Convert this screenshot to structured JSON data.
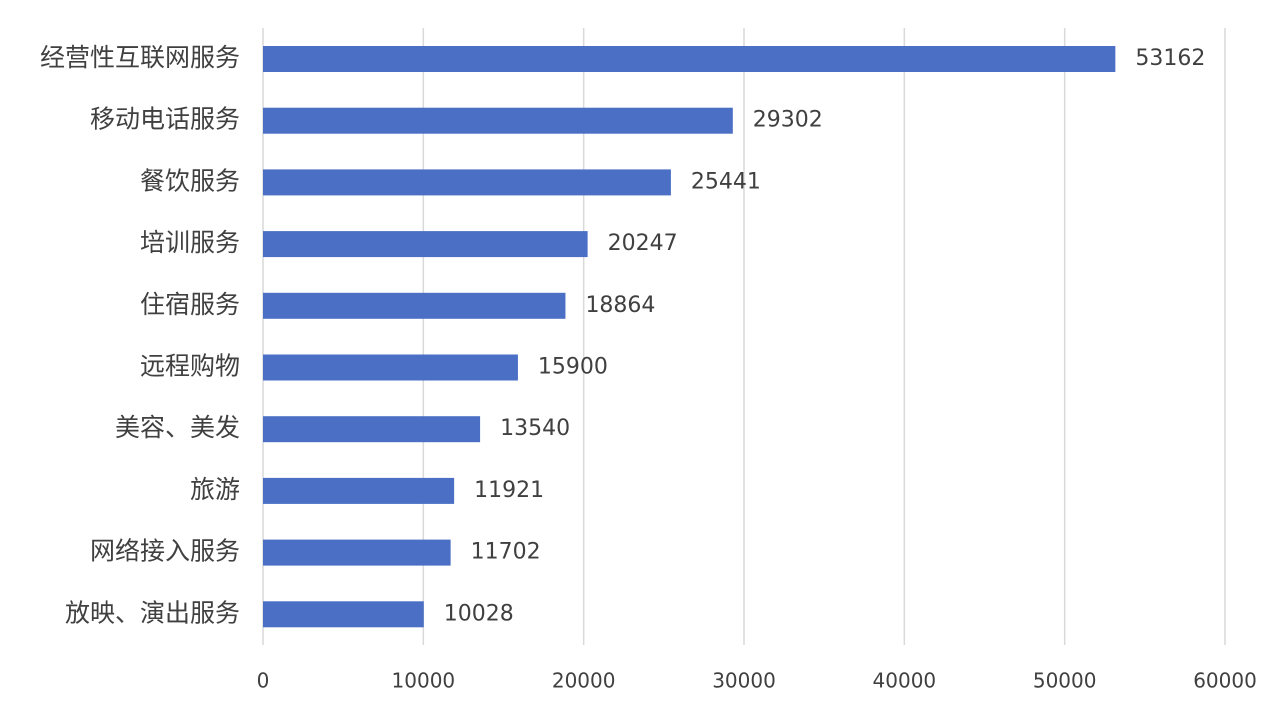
{
  "chart_data": {
    "type": "bar",
    "orientation": "horizontal",
    "categories": [
      "经营性互联网服务",
      "移动电话服务",
      "餐饮服务",
      "培训服务",
      "住宿服务",
      "远程购物",
      "美容、美发",
      "旅游",
      "网络接入服务",
      "放映、演出服务"
    ],
    "values": [
      53162,
      29302,
      25441,
      20247,
      18864,
      15900,
      13540,
      11921,
      11702,
      10028
    ],
    "color": "#4a6fc4",
    "xlim": [
      0,
      60000
    ],
    "xticks": [
      0,
      10000,
      20000,
      30000,
      40000,
      50000,
      60000
    ],
    "grid": true
  }
}
